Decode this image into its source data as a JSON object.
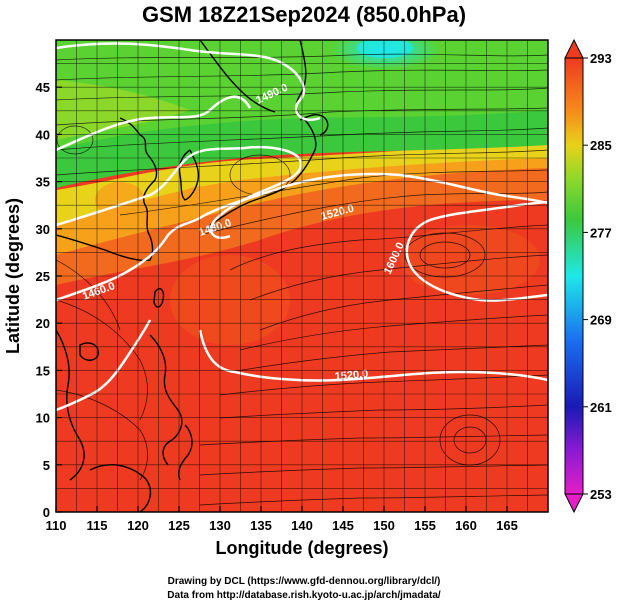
{
  "title": "GSM 18Z21Sep2024 (850.0hPa)",
  "x_label": "Longitude (degrees)",
  "y_label": "Latitude  (degrees)",
  "x_ticks": [
    110,
    115,
    120,
    125,
    130,
    135,
    140,
    145,
    150,
    155,
    160,
    165
  ],
  "y_ticks": [
    0,
    5,
    10,
    15,
    20,
    25,
    30,
    35,
    40,
    45
  ],
  "x_range": [
    110,
    170
  ],
  "y_range": [
    0,
    50
  ],
  "colorbar": {
    "labels": [
      "293",
      "285",
      "277",
      "269",
      "261",
      "253"
    ],
    "min": 253,
    "max": 293
  },
  "contour_labels": [
    "1490.0",
    "1480.0",
    "1520.0",
    "1460.0",
    "1600.0",
    "1520.0"
  ],
  "credits": {
    "line1": "Drawing by DCL (https://www.gfd-dennou.org/library/dcl/)",
    "line2": "Data from http://database.rish.kyoto-u.ac.jp/arch/jmadata/"
  },
  "colors": {
    "warm": "#ee3a20",
    "orange": "#f78a1a",
    "yellow": "#e8d21a",
    "green": "#3cc83c",
    "cyan": "#1ee8e8",
    "blue": "#1a6ef0",
    "navy": "#1a1ab4",
    "magenta": "#e61ec8"
  }
}
